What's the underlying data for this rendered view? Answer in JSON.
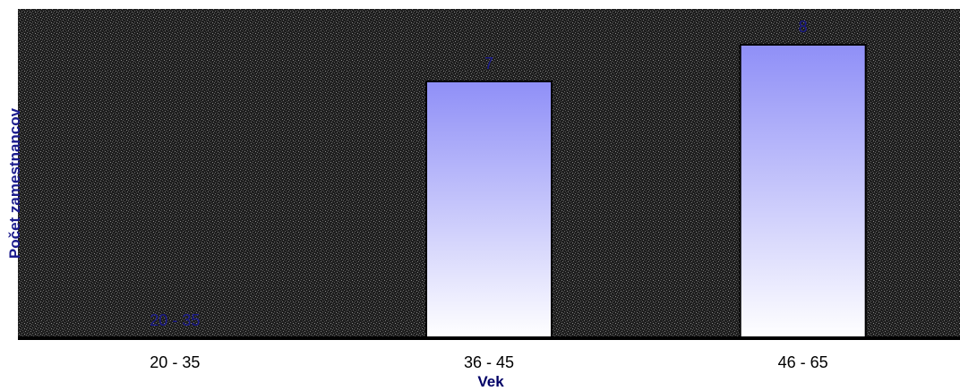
{
  "chart_data": {
    "type": "bar",
    "categories": [
      "20 - 35",
      "36 - 45",
      "46 - 65"
    ],
    "values": [
      0,
      7,
      8
    ],
    "data_labels": [
      "20 - 35",
      "7",
      "8"
    ],
    "xlabel": "Vek",
    "ylabel": "Počet zamestnancov",
    "ylim": [
      0,
      9
    ],
    "grid": false,
    "legend": "none",
    "colors": {
      "plot_background": "#1e1e1e",
      "bar_top": "#8f8ff7",
      "bar_bottom": "#ffffff",
      "bar_outline": "#000000",
      "label_text": "#1a1a8c"
    }
  }
}
